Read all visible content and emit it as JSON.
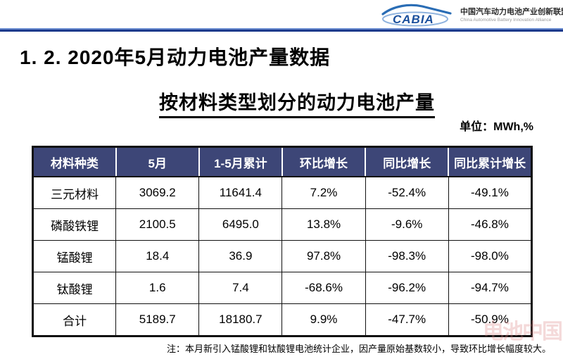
{
  "header": {
    "logo_text": "CABIA",
    "org_name_cn": "中国汽车动力电池产业创新联盟",
    "org_name_en": "China Automotive Battery Innovation Alliance"
  },
  "slide": {
    "title": "1. 2.  2020年5月动力电池产量数据",
    "subtitle": "按材料类型划分的动力电池产量",
    "unit_label": "单位：MWh,%",
    "note": "注：本月新引入锰酸锂和钛酸锂电池统计企业，因产量原始基数较小，导致环比增长幅度较大。",
    "watermark": "电池中国"
  },
  "chart_data": {
    "type": "table",
    "title": "按材料类型划分的动力电池产量",
    "unit": "MWh,%",
    "columns": [
      "材料种类",
      "5月",
      "1-5月累计",
      "环比增长",
      "同比增长",
      "同比累计增长"
    ],
    "rows": [
      [
        "三元材料",
        "3069.2",
        "11641.4",
        "7.2%",
        "-52.4%",
        "-49.1%"
      ],
      [
        "磷酸铁锂",
        "2100.5",
        "6495.0",
        "13.8%",
        "-9.6%",
        "-46.8%"
      ],
      [
        "锰酸锂",
        "18.4",
        "36.9",
        "97.8%",
        "-98.3%",
        "-98.0%"
      ],
      [
        "钛酸锂",
        "1.6",
        "7.4",
        "-68.6%",
        "-96.2%",
        "-94.7%"
      ],
      [
        "合计",
        "5189.7",
        "18180.7",
        "9.9%",
        "-47.7%",
        "-50.9%"
      ]
    ]
  },
  "colors": {
    "table_header_bg": "#3d4677",
    "rule_light_blue": "#6a8cd0",
    "rule_dark_blue": "#1c3a8c",
    "logo_blue": "#2a6db5",
    "logo_text_blue": "#1a4f9c",
    "watermark_pink": "#d98282"
  }
}
